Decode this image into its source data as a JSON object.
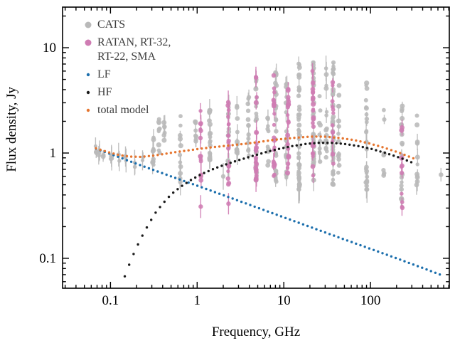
{
  "figure": {
    "xlabel": "Frequency, GHz",
    "ylabel": "Flux density, Jy"
  },
  "colors": {
    "cats_gray": "#b9b9b9",
    "ratan_pink": "#cf7cb3",
    "lf_blue": "#1c6fad",
    "hf_black": "#1a1a1a",
    "total_orange": "#e5752f",
    "axis_black": "#000000",
    "legend_text": "#3d3d3d"
  },
  "legend": [
    {
      "label": "CATS",
      "color": "#b9b9b9",
      "marker": "large-dot"
    },
    {
      "label": "RATAN, RT-32,",
      "label2": "RT-22, SMA",
      "color": "#cf7cb3",
      "marker": "large-dot"
    },
    {
      "label": "LF",
      "color": "#1c6fad",
      "marker": "small-dot"
    },
    {
      "label": "HF",
      "color": "#1a1a1a",
      "marker": "small-dot"
    },
    {
      "label": "total model",
      "color": "#e5752f",
      "marker": "small-dot"
    }
  ],
  "chart_data": {
    "type": "scatter",
    "title": "",
    "xlabel": "Frequency, GHz",
    "ylabel": "Flux density, Jy",
    "xscale": "log",
    "yscale": "log",
    "xlim": [
      0.028,
      812
    ],
    "ylim": [
      0.052,
      24.3
    ],
    "grid": false,
    "legend_position": "upper-left-inside",
    "x_ticks": [
      {
        "value": 0.1,
        "label": "0.1"
      },
      {
        "value": 1,
        "label": "1"
      },
      {
        "value": 10,
        "label": "10"
      },
      {
        "value": 100,
        "label": "100"
      }
    ],
    "y_ticks": [
      {
        "value": 0.1,
        "label": "0.1"
      },
      {
        "value": 1,
        "label": "1"
      },
      {
        "value": 10,
        "label": "10"
      }
    ],
    "series": [
      {
        "name": "CATS",
        "kind": "measurement-clusters",
        "color": "#b9b9b9",
        "note": "clusters = [frequency_GHz, flux_min_Jy, flux_max_Jy, n_points, errorbar_fraction]",
        "clusters": [
          [
            0.068,
            1.0,
            1.18,
            3,
            1.0
          ],
          [
            0.074,
            0.95,
            1.12,
            3,
            1.0
          ],
          [
            0.082,
            0.92,
            1.1,
            2,
            1.0
          ],
          [
            0.102,
            0.88,
            1.04,
            3,
            1.0
          ],
          [
            0.125,
            0.84,
            0.99,
            2,
            1.0
          ],
          [
            0.151,
            0.78,
            0.96,
            3,
            1.0
          ],
          [
            0.19,
            0.74,
            0.9,
            2,
            1.0
          ],
          [
            0.235,
            0.78,
            0.92,
            2,
            1.0
          ],
          [
            0.31,
            0.72,
            1.75,
            10,
            0.4
          ],
          [
            0.365,
            1.0,
            2.1,
            9,
            0.3
          ],
          [
            0.42,
            1.3,
            2.05,
            7,
            0.3
          ],
          [
            0.64,
            0.53,
            2.3,
            10,
            0.4
          ],
          [
            0.96,
            1.25,
            2.1,
            8,
            0.3
          ],
          [
            1.4,
            0.85,
            2.6,
            22,
            0.3
          ],
          [
            2.3,
            0.75,
            3.3,
            18,
            0.3
          ],
          [
            2.9,
            0.95,
            2.85,
            13,
            0.3
          ],
          [
            3.9,
            0.85,
            3.6,
            13,
            0.3
          ],
          [
            4.8,
            0.55,
            5.9,
            26,
            0.3
          ],
          [
            6.6,
            0.75,
            3.1,
            10,
            0.3
          ],
          [
            8.1,
            0.5,
            6.1,
            26,
            0.3
          ],
          [
            10.7,
            0.55,
            5.6,
            22,
            0.3
          ],
          [
            15,
            0.45,
            7.9,
            55,
            0.25
          ],
          [
            22,
            0.55,
            7.4,
            38,
            0.25
          ],
          [
            26,
            0.8,
            4.0,
            10,
            0.3
          ],
          [
            31,
            0.9,
            6.6,
            16,
            0.3
          ],
          [
            37,
            0.5,
            7.5,
            45,
            0.25
          ],
          [
            43,
            0.65,
            4.6,
            13,
            0.3
          ],
          [
            90,
            0.45,
            5.6,
            26,
            0.3
          ],
          [
            143,
            0.6,
            2.6,
            9,
            0.4
          ],
          [
            230,
            0.35,
            3.3,
            20,
            0.4
          ],
          [
            345,
            0.45,
            2.3,
            12,
            0.5
          ],
          [
            650,
            0.62,
            0.75,
            1,
            1.0
          ]
        ],
        "outliers": [
          [
            0.64,
            0.53
          ],
          [
            2.0,
            0.6
          ]
        ]
      },
      {
        "name": "RATAN, RT-32, RT-22, SMA",
        "kind": "measurement-clusters",
        "color": "#cf7cb3",
        "clusters": [
          [
            1.1,
            0.55,
            2.75,
            14,
            0.4
          ],
          [
            2.3,
            0.5,
            3.1,
            18,
            0.35
          ],
          [
            4.8,
            0.5,
            5.8,
            22,
            0.3
          ],
          [
            7.7,
            0.55,
            5.5,
            22,
            0.3
          ],
          [
            11.2,
            0.6,
            4.3,
            20,
            0.3
          ],
          [
            21.7,
            0.6,
            6.3,
            22,
            0.3
          ],
          [
            36.8,
            0.75,
            4.8,
            12,
            0.3
          ],
          [
            230,
            0.29,
            1.75,
            10,
            0.6
          ]
        ],
        "outliers": [
          [
            1.1,
            0.31
          ],
          [
            2.3,
            0.33
          ]
        ]
      },
      {
        "name": "LF",
        "kind": "model-curve",
        "style": "dotted",
        "color": "#1c6fad",
        "model": "S = 0.49 * f^-0.30 Jy",
        "points": [
          [
            0.068,
            1.1
          ],
          [
            0.1,
            0.98
          ],
          [
            0.2,
            0.79
          ],
          [
            0.5,
            0.6
          ],
          [
            1,
            0.49
          ],
          [
            2,
            0.398
          ],
          [
            5,
            0.302
          ],
          [
            10,
            0.245
          ],
          [
            20,
            0.199
          ],
          [
            50,
            0.151
          ],
          [
            100,
            0.123
          ],
          [
            200,
            0.1
          ],
          [
            400,
            0.081
          ],
          [
            700,
            0.068
          ]
        ]
      },
      {
        "name": "HF",
        "kind": "model-curve",
        "style": "dotted",
        "color": "#1a1a1a",
        "model": "self-absorbed component peaking near 25 GHz at 1.25 Jy",
        "points": [
          [
            0.13,
            0.05
          ],
          [
            0.15,
            0.072
          ],
          [
            0.18,
            0.105
          ],
          [
            0.22,
            0.15
          ],
          [
            0.27,
            0.205
          ],
          [
            0.33,
            0.27
          ],
          [
            0.4,
            0.33
          ],
          [
            0.5,
            0.405
          ],
          [
            0.65,
            0.48
          ],
          [
            0.85,
            0.555
          ],
          [
            1.1,
            0.625
          ],
          [
            1.5,
            0.7
          ],
          [
            2,
            0.765
          ],
          [
            3,
            0.855
          ],
          [
            4.5,
            0.945
          ],
          [
            6.5,
            1.03
          ],
          [
            9,
            1.1
          ],
          [
            13,
            1.17
          ],
          [
            18,
            1.22
          ],
          [
            25,
            1.25
          ],
          [
            35,
            1.25
          ],
          [
            50,
            1.22
          ],
          [
            70,
            1.17
          ],
          [
            100,
            1.1
          ],
          [
            150,
            1.0
          ],
          [
            220,
            0.9
          ],
          [
            330,
            0.79
          ]
        ]
      },
      {
        "name": "total model",
        "kind": "model-curve",
        "style": "dotted",
        "color": "#e5752f",
        "model": "LF + HF",
        "points": [
          [
            0.068,
            1.109
          ],
          [
            0.08,
            1.062
          ],
          [
            0.1,
            1.004
          ],
          [
            0.13,
            0.952
          ],
          [
            0.17,
            0.925
          ],
          [
            0.22,
            0.92
          ],
          [
            0.3,
            0.94
          ],
          [
            0.4,
            0.974
          ],
          [
            0.55,
            1.017
          ],
          [
            0.8,
            1.061
          ],
          [
            1.1,
            1.101
          ],
          [
            1.6,
            1.141
          ],
          [
            2.3,
            1.177
          ],
          [
            3.5,
            1.222
          ],
          [
            5,
            1.267
          ],
          [
            7.5,
            1.332
          ],
          [
            11,
            1.373
          ],
          [
            16,
            1.413
          ],
          [
            22,
            1.434
          ],
          [
            30,
            1.429
          ],
          [
            45,
            1.387
          ],
          [
            65,
            1.326
          ],
          [
            95,
            1.24
          ],
          [
            140,
            1.131
          ],
          [
            210,
            1.013
          ],
          [
            330,
            0.875
          ]
        ]
      }
    ]
  }
}
